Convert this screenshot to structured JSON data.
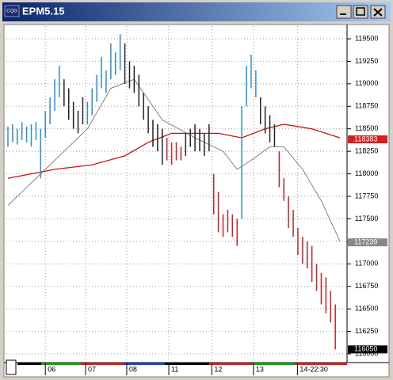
{
  "window": {
    "title": "EPM5.15",
    "icon_text": "CQG"
  },
  "chart_data": {
    "type": "ohlc",
    "xlim": [
      0,
      72
    ],
    "ylim": [
      115930,
      119623
    ],
    "xticks": [
      {
        "value": 8,
        "label": "06"
      },
      {
        "value": 16.6,
        "label": "07"
      },
      {
        "value": 25.4,
        "label": "08"
      },
      {
        "value": 34.4,
        "label": "11"
      },
      {
        "value": 43.6,
        "label": "12"
      },
      {
        "value": 52.5,
        "label": "13"
      },
      {
        "value": 61.9,
        "label": "14-22:30"
      }
    ],
    "yticks": [
      116000,
      116250,
      116500,
      116750,
      117000,
      117250,
      117500,
      117750,
      118000,
      118250,
      118500,
      118750,
      119000,
      119250,
      119500
    ],
    "grid": true,
    "series": [
      {
        "color": "#2b8fd8",
        "x": [
          0,
          1,
          2,
          3,
          4,
          5,
          6,
          7,
          8,
          9,
          10,
          11,
          17,
          18,
          19,
          20,
          21,
          22,
          23,
          24,
          50,
          51,
          52,
          53
        ],
        "high": [
          118525,
          118550,
          118500,
          118575,
          118525,
          118550,
          118575,
          118500,
          118700,
          118850,
          119050,
          119200,
          118800,
          118950,
          119100,
          119300,
          119150,
          119450,
          119350,
          119550,
          118750,
          119200,
          119325,
          119150
        ],
        "low": [
          118300,
          118350,
          118325,
          118375,
          118350,
          118300,
          118375,
          117950,
          118400,
          118550,
          118700,
          118850,
          118550,
          118650,
          118800,
          118950,
          118900,
          119050,
          119100,
          119150,
          117500,
          118750,
          118950,
          118850
        ]
      },
      {
        "color": "#222222",
        "x": [
          12,
          13,
          14,
          15,
          16,
          25,
          26,
          27,
          28,
          29,
          30,
          31,
          32,
          33,
          38,
          39,
          40,
          41,
          42,
          43,
          54,
          55,
          56,
          57
        ],
        "high": [
          119050,
          118950,
          118800,
          118700,
          118850,
          119450,
          119250,
          119200,
          119100,
          118900,
          118750,
          118600,
          118550,
          118500,
          118450,
          118500,
          118550,
          118500,
          118450,
          118550,
          118850,
          118750,
          118650,
          118550
        ],
        "low": [
          118750,
          118600,
          118500,
          118450,
          118550,
          119000,
          118950,
          118900,
          118750,
          118600,
          118450,
          118300,
          118250,
          118100,
          118200,
          118300,
          118250,
          118250,
          118200,
          118250,
          118550,
          118450,
          118350,
          118300
        ]
      },
      {
        "color": "#d42020",
        "x": [
          34,
          35,
          36,
          37,
          44,
          45,
          46,
          47,
          48,
          49,
          58,
          59,
          60,
          61,
          62,
          63,
          64,
          65,
          66,
          67,
          68,
          69,
          70
        ],
        "high": [
          118400,
          118350,
          118350,
          118300,
          118000,
          117800,
          117550,
          117600,
          117550,
          117500,
          118250,
          117950,
          117750,
          117600,
          117400,
          117300,
          117250,
          117200,
          117000,
          116900,
          116850,
          116700,
          116550
        ],
        "low": [
          118150,
          118100,
          118150,
          118150,
          117550,
          117350,
          117300,
          117350,
          117300,
          117200,
          117850,
          117700,
          117400,
          117300,
          117100,
          117000,
          116950,
          116800,
          116700,
          116550,
          116450,
          116350,
          116050
        ]
      }
    ],
    "lines": [
      {
        "color": "#777777",
        "x": [
          0,
          5,
          10,
          17,
          22,
          27,
          33,
          40,
          46,
          49,
          52,
          56,
          59,
          63,
          67,
          71
        ],
        "values": [
          117650,
          117900,
          118150,
          118500,
          118950,
          119050,
          118600,
          118400,
          118250,
          118050,
          118150,
          118300,
          118300,
          118050,
          117700,
          117250
        ]
      },
      {
        "color": "#cc1111",
        "x": [
          0,
          10,
          18,
          25,
          30,
          35,
          45,
          50,
          55,
          59,
          65,
          71
        ],
        "values": [
          117950,
          118050,
          118100,
          118200,
          118350,
          118450,
          118450,
          118400,
          118500,
          118550,
          118500,
          118400
        ]
      }
    ],
    "last_labels": [
      {
        "value": 118383,
        "color": "#d42020"
      },
      {
        "value": 117239,
        "color": "#888888"
      },
      {
        "value": 116050,
        "color": "#000000"
      }
    ]
  }
}
